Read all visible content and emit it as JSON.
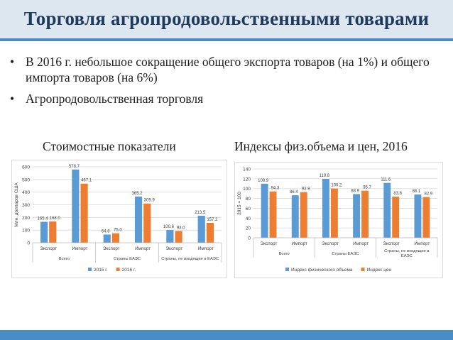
{
  "slide": {
    "title": "Торговля агропродовольственными товарами",
    "bullets": [
      "В 2016 г. небольшое сокращение общего экспорта товаров (на 1%) и общего импорта товаров (на 6%)",
      "Агропродовольственная торговля"
    ],
    "bullet_symbol": "•",
    "subtitle_left": "Стоимостные показатели",
    "subtitle_right": "Индексы физ.объема и цен, 2016"
  },
  "colors": {
    "accent": "#4a8cc4",
    "title_bg": "#dde7f0",
    "title_text": "#1f3a5c",
    "series_blue": "#5b9bd5",
    "series_orange": "#ed7d31"
  },
  "chart_data": [
    {
      "type": "bar",
      "ylabel": "Млн. долларов США",
      "ylim": [
        0,
        600
      ],
      "yticks": [
        0,
        100,
        200,
        300,
        400,
        500,
        600
      ],
      "grid": true,
      "legend_position": "bottom",
      "categories": [
        "Экспорт",
        "Импорт",
        "Экспорт",
        "Импорт",
        "Экспорт",
        "Импорт"
      ],
      "groups": [
        {
          "label": "Всего",
          "span": 2
        },
        {
          "label": "Страны ЕАЭС",
          "span": 2
        },
        {
          "label": "Страны, не входящие в ЕАЭС",
          "span": 2
        }
      ],
      "series": [
        {
          "name": "2015 г.",
          "color": "#5b9bd5",
          "values": [
            165.4,
            578.7,
            64.8,
            365.2,
            100.6,
            213.5
          ],
          "labels": [
            "165.4",
            "578.7",
            "64.8",
            "365.2",
            "100.6",
            "213.5"
          ]
        },
        {
          "name": "2016 г.",
          "color": "#ed7d31",
          "values": [
            168.0,
            467.1,
            75.0,
            309.9,
            93.0,
            157.2
          ],
          "labels": [
            "168.0",
            "467.1",
            "75.0",
            "309.9",
            "93.0",
            "157.2"
          ]
        }
      ]
    },
    {
      "type": "bar",
      "ylabel": "2015 = 100",
      "ylim": [
        0,
        140
      ],
      "yticks": [
        0,
        20,
        40,
        60,
        80,
        100,
        120,
        140
      ],
      "grid": true,
      "legend_position": "bottom",
      "categories": [
        "Экспорт",
        "Импорт",
        "Экспорт",
        "Импорт",
        "Экспорт",
        "Импорт"
      ],
      "groups": [
        {
          "label": "Всего",
          "span": 2
        },
        {
          "label": "Страны ЕАЭС",
          "span": 2
        },
        {
          "label": "Страны, не входящие в ЕАЭС",
          "span": 2
        }
      ],
      "series": [
        {
          "name": "Индекс физического объема",
          "color": "#5b9bd5",
          "values": [
            109.9,
            86.4,
            119.8,
            88.9,
            111.6,
            88.1
          ],
          "labels": [
            "109.9",
            "86.4",
            "119.8",
            "88.9",
            "111.6",
            "88.1"
          ]
        },
        {
          "name": "Индекс цен",
          "color": "#ed7d31",
          "values": [
            94.3,
            92.9,
            100.2,
            95.7,
            83.6,
            82.9
          ],
          "labels": [
            "94.3",
            "92.9",
            "100.2",
            "95.7",
            "83.6",
            "82.9"
          ]
        }
      ]
    }
  ]
}
